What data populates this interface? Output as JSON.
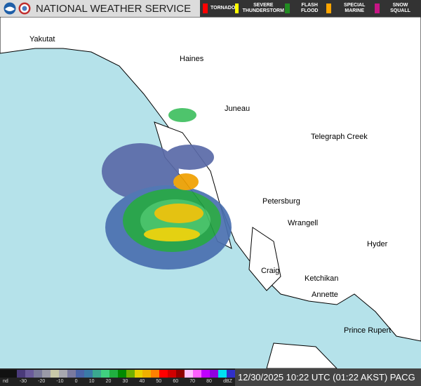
{
  "header": {
    "title": "NATIONAL WEATHER SERVICE",
    "warnings": [
      {
        "label": "TORNADO",
        "color": "#ff0000"
      },
      {
        "label": "SEVERE THUNDERSTORM",
        "color": "#ffff00"
      },
      {
        "label": "FLASH FLOOD",
        "color": "#228b22"
      },
      {
        "label": "SPECIAL MARINE",
        "color": "#ffa500"
      },
      {
        "label": "SNOW SQUALL",
        "color": "#c71585"
      }
    ]
  },
  "map": {
    "cities": [
      "Yakutat",
      "Haines",
      "Juneau",
      "Telegraph Creek",
      "Petersburg",
      "Wrangell",
      "Hyder",
      "Craig",
      "Ketchikan",
      "Annette",
      "Prince Rupert"
    ]
  },
  "legend": {
    "ticks": [
      "nd",
      "-30",
      "-20",
      "-10",
      "0",
      "10",
      "20",
      "30",
      "40",
      "50",
      "60",
      "70",
      "80",
      "dBZ"
    ],
    "colors": [
      "#111",
      "#111",
      "#4a3a7a",
      "#6a5a9a",
      "#7a7a9a",
      "#9a9aa8",
      "#c8c8a8",
      "#a8a8b0",
      "#7a7aa0",
      "#4a64a8",
      "#3a7aa8",
      "#3aa890",
      "#40d080",
      "#20b040",
      "#008a00",
      "#70b000",
      "#e8d000",
      "#f0b000",
      "#ff8000",
      "#ff0000",
      "#d00000",
      "#900000",
      "#ffc0ff",
      "#ff60ff",
      "#c000ff",
      "#9000e0",
      "#00e0f0",
      "#3030c8"
    ]
  },
  "timestamp": "12/30/2025 10:22 UTC (01:22 AKST) PACG"
}
